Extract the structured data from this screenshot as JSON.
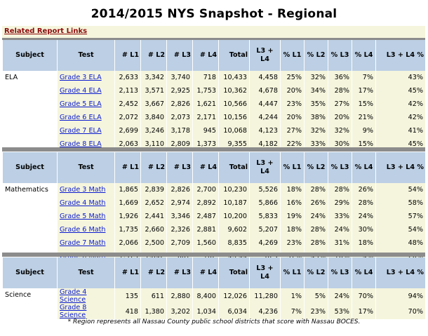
{
  "title": "2014/2015 NYS Snapshot - Regional",
  "related_link": "Related Report Links",
  "headers": {
    "subject": "Subject",
    "test": "Test",
    "l1": "# L1",
    "l2": "# L2",
    "l3": "# L3",
    "l4": "# L4",
    "total": "Total",
    "l3l4": "L3 + L4",
    "pl1": "% L1",
    "pl2": "% L2",
    "pl3": "% L3",
    "pl4": "% L4",
    "pl3l4": "L3 + L4 %"
  },
  "sections": [
    {
      "subject": "ELA",
      "rows": [
        {
          "test": "Grade 3 ELA",
          "l1": "2,633",
          "l2": "3,342",
          "l3": "3,740",
          "l4": "718",
          "total": "10,433",
          "l3l4": "4,458",
          "pl1": "25%",
          "pl2": "32%",
          "pl3": "36%",
          "pl4": "7%",
          "pl3l4": "43%"
        },
        {
          "test": "Grade 4 ELA",
          "l1": "2,113",
          "l2": "3,571",
          "l3": "2,925",
          "l4": "1,753",
          "total": "10,362",
          "l3l4": "4,678",
          "pl1": "20%",
          "pl2": "34%",
          "pl3": "28%",
          "pl4": "17%",
          "pl3l4": "45%"
        },
        {
          "test": "Grade 5 ELA",
          "l1": "2,452",
          "l2": "3,667",
          "l3": "2,826",
          "l4": "1,621",
          "total": "10,566",
          "l3l4": "4,447",
          "pl1": "23%",
          "pl2": "35%",
          "pl3": "27%",
          "pl4": "15%",
          "pl3l4": "42%"
        },
        {
          "test": "Grade 6 ELA",
          "l1": "2,072",
          "l2": "3,840",
          "l3": "2,073",
          "l4": "2,171",
          "total": "10,156",
          "l3l4": "4,244",
          "pl1": "20%",
          "pl2": "38%",
          "pl3": "20%",
          "pl4": "21%",
          "pl3l4": "42%"
        },
        {
          "test": "Grade 7 ELA",
          "l1": "2,699",
          "l2": "3,246",
          "l3": "3,178",
          "l4": "945",
          "total": "10,068",
          "l3l4": "4,123",
          "pl1": "27%",
          "pl2": "32%",
          "pl3": "32%",
          "pl4": "9%",
          "pl3l4": "41%"
        },
        {
          "test": "Grade 8 ELA",
          "l1": "2,063",
          "l2": "3,110",
          "l3": "2,809",
          "l4": "1,373",
          "total": "9,355",
          "l3l4": "4,182",
          "pl1": "22%",
          "pl2": "33%",
          "pl3": "30%",
          "pl4": "15%",
          "pl3l4": "45%"
        }
      ]
    },
    {
      "subject": "Mathematics",
      "rows": [
        {
          "test": "Grade 3 Math",
          "l1": "1,865",
          "l2": "2,839",
          "l3": "2,826",
          "l4": "2,700",
          "total": "10,230",
          "l3l4": "5,526",
          "pl1": "18%",
          "pl2": "28%",
          "pl3": "28%",
          "pl4": "26%",
          "pl3l4": "54%"
        },
        {
          "test": "Grade 4 Math",
          "l1": "1,669",
          "l2": "2,652",
          "l3": "2,974",
          "l4": "2,892",
          "total": "10,187",
          "l3l4": "5,866",
          "pl1": "16%",
          "pl2": "26%",
          "pl3": "29%",
          "pl4": "28%",
          "pl3l4": "58%"
        },
        {
          "test": "Grade 5 Math",
          "l1": "1,926",
          "l2": "2,441",
          "l3": "3,346",
          "l4": "2,487",
          "total": "10,200",
          "l3l4": "5,833",
          "pl1": "19%",
          "pl2": "24%",
          "pl3": "33%",
          "pl4": "24%",
          "pl3l4": "57%"
        },
        {
          "test": "Grade 6 Math",
          "l1": "1,735",
          "l2": "2,660",
          "l3": "2,326",
          "l4": "2,881",
          "total": "9,602",
          "l3l4": "5,207",
          "pl1": "18%",
          "pl2": "28%",
          "pl3": "24%",
          "pl4": "30%",
          "pl3l4": "54%"
        },
        {
          "test": "Grade 7 Math",
          "l1": "2,066",
          "l2": "2,500",
          "l3": "2,709",
          "l4": "1,560",
          "total": "8,835",
          "l3l4": "4,269",
          "pl1": "23%",
          "pl2": "28%",
          "pl3": "31%",
          "pl4": "18%",
          "pl3l4": "48%"
        },
        {
          "test": "Grade 8 Math",
          "l1": "1,573",
          "l2": "1,842",
          "l3": "667",
          "l4": "162",
          "total": "4,244",
          "l3l4": "829",
          "pl1": "37%",
          "pl2": "43%",
          "pl3": "16%",
          "pl4": "4%",
          "pl3l4": "20%"
        }
      ]
    },
    {
      "subject": "Science",
      "rows": [
        {
          "test": "Grade 4 Science",
          "l1": "135",
          "l2": "611",
          "l3": "2,880",
          "l4": "8,400",
          "total": "12,026",
          "l3l4": "11,280",
          "pl1": "1%",
          "pl2": "5%",
          "pl3": "24%",
          "pl4": "70%",
          "pl3l4": "94%"
        },
        {
          "test": "Grade 8 Science",
          "l1": "418",
          "l2": "1,380",
          "l3": "3,202",
          "l4": "1,034",
          "total": "6,034",
          "l3l4": "4,236",
          "pl1": "7%",
          "pl2": "23%",
          "pl3": "53%",
          "pl4": "17%",
          "pl3l4": "70%"
        }
      ]
    }
  ],
  "footnote": "* Region represents all Nassau County public school districts that score with Nassau BOCES.",
  "colors": {
    "header_bg": "#bccfe4",
    "cell_bg": "#f5f5dd",
    "separator": "#8c8c8c",
    "link": "#0a1ad0",
    "related_link": "#8b0a0a"
  }
}
